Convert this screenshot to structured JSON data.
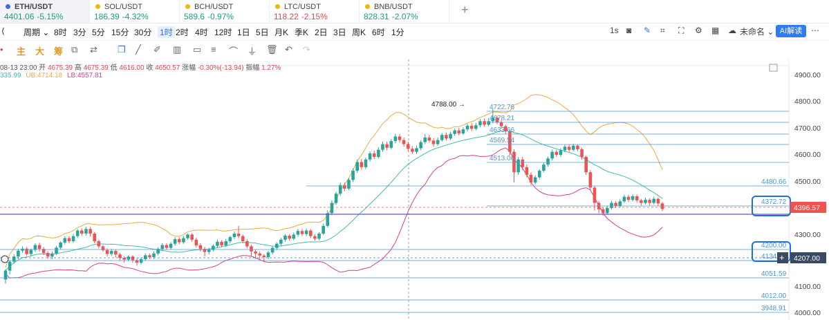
{
  "tabs": [
    {
      "symbol": "ETH/USDT",
      "price": "4401.06",
      "change": "-5.15%",
      "dot": "#3b6fd8"
    },
    {
      "symbol": "SOL/USDT",
      "price": "186.39",
      "change": "-4.32%",
      "dot": "#f0b90b"
    },
    {
      "symbol": "BCH/USDT",
      "price": "589.6",
      "change": "-0.97%",
      "dot": "#f0b90b"
    },
    {
      "symbol": "LTC/USDT",
      "price": "118.22",
      "change": "-2.15%",
      "dot": "#f0b90b"
    },
    {
      "symbol": "BNB/USDT",
      "price": "828.31",
      "change": "-2.07%",
      "dot": "#f0b90b"
    }
  ],
  "toolbar": {
    "period_label": "周期",
    "intervals": [
      "8时",
      "3分",
      "5分",
      "15分",
      "30分",
      "1时",
      "2时",
      "4时",
      "12时",
      "1日",
      "5日",
      "月K",
      "季K",
      "2日",
      "3日",
      "周K",
      "6时",
      "1分"
    ],
    "active_interval": "1时",
    "speed": "1s",
    "layout_name": "未命名",
    "ai_label": "AI解读"
  },
  "drawbar": {
    "indicators": [
      "主",
      "大",
      "筹"
    ]
  },
  "info": {
    "time": "08-13 23:00",
    "open_label": "开",
    "open": "4675.39",
    "high_label": "高",
    "high": "4675.39",
    "low_label": "低",
    "low": "4616.00",
    "close_label": "收",
    "close": "4650.57",
    "change_label": "涨幅",
    "change": "-0.30%(-13.94)",
    "amp_label": "振幅",
    "amp": "1.27%",
    "mb": "335.99",
    "ub": "UB:4714.18",
    "lb": "LB:4557.81"
  },
  "colors": {
    "up": "#26a69a",
    "down": "#ef5350",
    "ub": "#f2a93b",
    "mb": "#3fbfa9",
    "lb": "#d63d8f",
    "hline": "#4a98d4",
    "accent": "#2f7bf1"
  },
  "axis": {
    "ticks": [
      "4900.00",
      "4800.00",
      "4700.00",
      "4600.00",
      "4500.00",
      "4300.00",
      "4200.00",
      "4100.00",
      "4000.00"
    ],
    "current_price": "4396.57",
    "marked_price": "4207.00"
  },
  "annotations": {
    "peak": "4788.00",
    "levels": [
      "4722.76",
      "4678.21",
      "4633.66",
      "4569.54",
      "4513.06",
      "4480.66",
      "4372.72",
      "4200.00",
      "4134.54",
      "4051.59",
      "4012.00",
      "3948.91"
    ]
  },
  "chart_data": {
    "type": "candlestick",
    "y_range": [
      3940,
      4960
    ],
    "candles": [
      [
        4120,
        4155,
        4104,
        4160
      ],
      [
        4155,
        4190,
        4140,
        4196
      ],
      [
        4190,
        4210,
        4182,
        4218
      ],
      [
        4210,
        4233,
        4200,
        4241
      ],
      [
        4233,
        4241,
        4225,
        4250
      ],
      [
        4241,
        4220,
        4214,
        4248
      ],
      [
        4220,
        4236,
        4212,
        4242
      ],
      [
        4236,
        4255,
        4228,
        4262
      ],
      [
        4255,
        4240,
        4230,
        4264
      ],
      [
        4240,
        4224,
        4216,
        4248
      ],
      [
        4224,
        4210,
        4202,
        4230
      ],
      [
        4210,
        4222,
        4200,
        4230
      ],
      [
        4222,
        4245,
        4216,
        4252
      ],
      [
        4245,
        4265,
        4238,
        4270
      ],
      [
        4265,
        4282,
        4258,
        4290
      ],
      [
        4282,
        4270,
        4262,
        4290
      ],
      [
        4270,
        4290,
        4264,
        4298
      ],
      [
        4290,
        4312,
        4282,
        4318
      ],
      [
        4312,
        4300,
        4292,
        4320
      ],
      [
        4300,
        4318,
        4292,
        4326
      ],
      [
        4318,
        4300,
        4288,
        4326
      ],
      [
        4300,
        4270,
        4262,
        4306
      ],
      [
        4270,
        4250,
        4242,
        4276
      ],
      [
        4250,
        4235,
        4228,
        4256
      ],
      [
        4235,
        4220,
        4210,
        4242
      ],
      [
        4220,
        4232,
        4212,
        4240
      ],
      [
        4232,
        4218,
        4206,
        4238
      ],
      [
        4218,
        4205,
        4195,
        4224
      ],
      [
        4205,
        4198,
        4186,
        4212
      ],
      [
        4198,
        4210,
        4192,
        4216
      ],
      [
        4210,
        4196,
        4186,
        4216
      ],
      [
        4196,
        4186,
        4174,
        4204
      ],
      [
        4186,
        4200,
        4180,
        4206
      ],
      [
        4200,
        4215,
        4194,
        4222
      ],
      [
        4215,
        4208,
        4200,
        4222
      ],
      [
        4208,
        4222,
        4200,
        4230
      ],
      [
        4222,
        4240,
        4214,
        4246
      ],
      [
        4240,
        4255,
        4232,
        4262
      ],
      [
        4255,
        4244,
        4236,
        4262
      ],
      [
        4244,
        4260,
        4238,
        4266
      ],
      [
        4260,
        4278,
        4252,
        4286
      ],
      [
        4278,
        4266,
        4258,
        4286
      ],
      [
        4266,
        4282,
        4260,
        4290
      ],
      [
        4282,
        4296,
        4276,
        4300
      ],
      [
        4296,
        4276,
        4268,
        4302
      ],
      [
        4276,
        4254,
        4246,
        4284
      ],
      [
        4254,
        4240,
        4230,
        4262
      ],
      [
        4240,
        4228,
        4210,
        4248
      ],
      [
        4228,
        4236,
        4218,
        4244
      ],
      [
        4236,
        4252,
        4230,
        4258
      ],
      [
        4252,
        4268,
        4244,
        4276
      ],
      [
        4268,
        4254,
        4246,
        4274
      ],
      [
        4254,
        4270,
        4248,
        4278
      ],
      [
        4270,
        4286,
        4262,
        4292
      ],
      [
        4286,
        4300,
        4278,
        4308
      ],
      [
        4300,
        4290,
        4282,
        4330
      ],
      [
        4290,
        4270,
        4262,
        4296
      ],
      [
        4270,
        4250,
        4242,
        4278
      ],
      [
        4250,
        4230,
        4210,
        4256
      ],
      [
        4230,
        4222,
        4200,
        4236
      ],
      [
        4222,
        4214,
        4196,
        4230
      ],
      [
        4214,
        4208,
        4190,
        4220
      ],
      [
        4208,
        4226,
        4200,
        4232
      ],
      [
        4226,
        4244,
        4218,
        4250
      ],
      [
        4244,
        4260,
        4236,
        4266
      ],
      [
        4260,
        4276,
        4252,
        4284
      ],
      [
        4276,
        4292,
        4268,
        4298
      ],
      [
        4292,
        4280,
        4272,
        4298
      ],
      [
        4280,
        4296,
        4274,
        4304
      ],
      [
        4296,
        4310,
        4288,
        4318
      ],
      [
        4310,
        4298,
        4290,
        4318
      ],
      [
        4298,
        4312,
        4290,
        4320
      ],
      [
        4312,
        4290,
        4282,
        4318
      ],
      [
        4290,
        4280,
        4272,
        4298
      ],
      [
        4280,
        4300,
        4274,
        4306
      ],
      [
        4300,
        4330,
        4294,
        4338
      ],
      [
        4330,
        4380,
        4324,
        4390
      ],
      [
        4380,
        4420,
        4372,
        4430
      ],
      [
        4420,
        4456,
        4412,
        4464
      ],
      [
        4456,
        4490,
        4448,
        4500
      ],
      [
        4490,
        4476,
        4466,
        4500
      ],
      [
        4476,
        4510,
        4470,
        4518
      ],
      [
        4510,
        4546,
        4502,
        4556
      ],
      [
        4546,
        4580,
        4538,
        4590
      ],
      [
        4580,
        4560,
        4550,
        4592
      ],
      [
        4560,
        4590,
        4552,
        4598
      ],
      [
        4590,
        4614,
        4582,
        4622
      ],
      [
        4614,
        4600,
        4592,
        4624
      ],
      [
        4600,
        4628,
        4594,
        4638
      ],
      [
        4628,
        4650,
        4620,
        4660
      ],
      [
        4650,
        4636,
        4626,
        4660
      ],
      [
        4636,
        4662,
        4630,
        4670
      ],
      [
        4662,
        4680,
        4654,
        4690
      ],
      [
        4680,
        4666,
        4656,
        4690
      ],
      [
        4666,
        4650,
        4640,
        4676
      ],
      [
        4650,
        4632,
        4622,
        4660
      ],
      [
        4632,
        4620,
        4612,
        4642
      ],
      [
        4620,
        4634,
        4612,
        4644
      ],
      [
        4634,
        4658,
        4626,
        4666
      ],
      [
        4658,
        4676,
        4650,
        4690
      ],
      [
        4676,
        4664,
        4656,
        4686
      ],
      [
        4664,
        4650,
        4640,
        4674
      ],
      [
        4650,
        4666,
        4644,
        4676
      ],
      [
        4666,
        4686,
        4660,
        4694
      ],
      [
        4686,
        4672,
        4664,
        4696
      ],
      [
        4672,
        4690,
        4666,
        4698
      ],
      [
        4690,
        4704,
        4682,
        4712
      ],
      [
        4704,
        4692,
        4684,
        4714
      ],
      [
        4692,
        4708,
        4686,
        4716
      ],
      [
        4708,
        4722,
        4700,
        4730
      ],
      [
        4722,
        4710,
        4702,
        4732
      ],
      [
        4710,
        4724,
        4704,
        4734
      ],
      [
        4724,
        4740,
        4716,
        4748
      ],
      [
        4740,
        4726,
        4718,
        4750
      ],
      [
        4726,
        4740,
        4720,
        4752
      ],
      [
        4740,
        4754,
        4732,
        4788
      ],
      [
        4754,
        4736,
        4728,
        4760
      ],
      [
        4736,
        4720,
        4712,
        4744
      ],
      [
        4720,
        4700,
        4690,
        4726
      ],
      [
        4700,
        4620,
        4606,
        4708
      ],
      [
        4620,
        4540,
        4500,
        4630
      ],
      [
        4540,
        4590,
        4530,
        4600
      ],
      [
        4590,
        4560,
        4548,
        4600
      ],
      [
        4560,
        4530,
        4520,
        4570
      ],
      [
        4530,
        4500,
        4490,
        4540
      ],
      [
        4500,
        4520,
        4492,
        4528
      ],
      [
        4520,
        4546,
        4512,
        4552
      ],
      [
        4546,
        4570,
        4540,
        4578
      ],
      [
        4570,
        4594,
        4562,
        4602
      ],
      [
        4594,
        4620,
        4586,
        4628
      ],
      [
        4620,
        4608,
        4600,
        4628
      ],
      [
        4608,
        4626,
        4600,
        4634
      ],
      [
        4626,
        4640,
        4618,
        4648
      ],
      [
        4640,
        4628,
        4620,
        4648
      ],
      [
        4628,
        4644,
        4622,
        4652
      ],
      [
        4644,
        4630,
        4622,
        4650
      ],
      [
        4630,
        4600,
        4590,
        4636
      ],
      [
        4600,
        4540,
        4530,
        4606
      ],
      [
        4540,
        4480,
        4470,
        4548
      ],
      [
        4480,
        4420,
        4390,
        4486
      ],
      [
        4420,
        4395,
        4380,
        4428
      ],
      [
        4395,
        4380,
        4370,
        4402
      ],
      [
        4380,
        4400,
        4374,
        4408
      ],
      [
        4400,
        4420,
        4394,
        4428
      ],
      [
        4420,
        4408,
        4400,
        4426
      ],
      [
        4408,
        4426,
        4402,
        4434
      ],
      [
        4426,
        4444,
        4420,
        4452
      ],
      [
        4444,
        4432,
        4424,
        4452
      ],
      [
        4432,
        4446,
        4426,
        4454
      ],
      [
        4446,
        4430,
        4422,
        4452
      ],
      [
        4430,
        4420,
        4410,
        4436
      ],
      [
        4420,
        4432,
        4414,
        4440
      ],
      [
        4432,
        4420,
        4410,
        4438
      ],
      [
        4420,
        4436,
        4414,
        4444
      ],
      [
        4436,
        4418,
        4408,
        4442
      ],
      [
        4418,
        4396,
        4388,
        4424
      ]
    ]
  }
}
